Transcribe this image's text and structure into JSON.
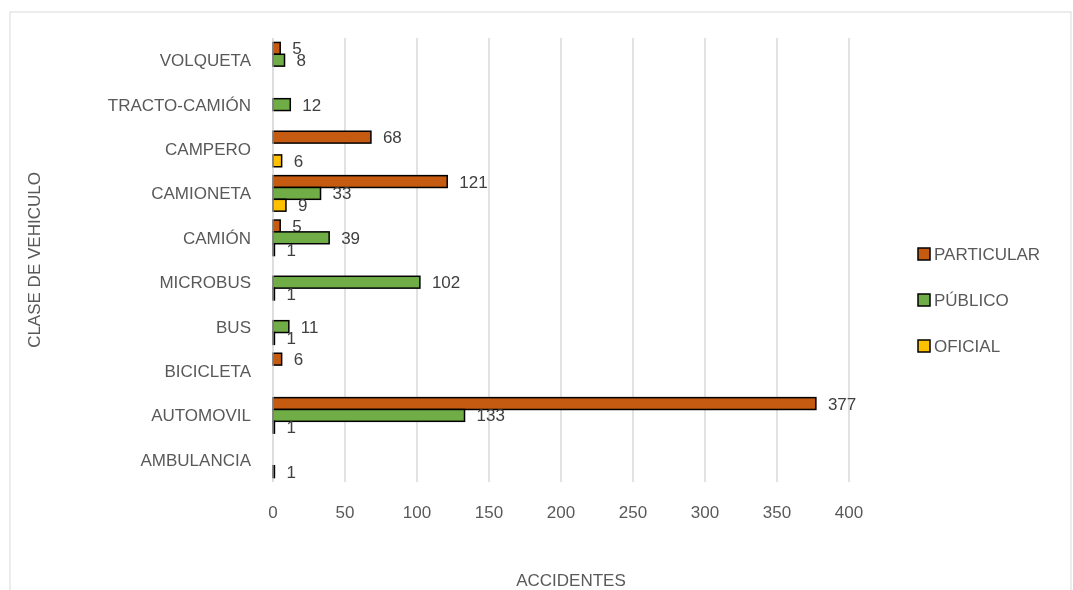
{
  "chart_data": {
    "type": "bar",
    "orientation": "horizontal",
    "xlabel": "ACCIDENTES",
    "ylabel": "CLASE DE VEHICULO",
    "categories": [
      "VOLQUETA",
      "TRACTO-CAMIÓN",
      "CAMPERO",
      "CAMIONETA",
      "CAMIÓN",
      "MICROBUS",
      "BUS",
      "BICICLETA",
      "AUTOMOVIL",
      "AMBULANCIA"
    ],
    "series": [
      {
        "name": "PARTICULAR",
        "color": "#c55a11",
        "values": [
          5,
          null,
          68,
          121,
          5,
          null,
          null,
          6,
          377,
          null
        ]
      },
      {
        "name": "PÚBLICO",
        "color": "#70ad47",
        "values": [
          8,
          12,
          null,
          33,
          39,
          102,
          11,
          null,
          133,
          null
        ]
      },
      {
        "name": "OFICIAL",
        "color": "#ffc000",
        "values": [
          null,
          null,
          6,
          9,
          1,
          1,
          1,
          null,
          1,
          1
        ]
      }
    ],
    "xlim": [
      0,
      400
    ],
    "xticks": [
      0,
      50,
      100,
      150,
      200,
      250,
      300,
      350,
      400
    ],
    "grid": "x",
    "legend": "right",
    "data_labels": true
  }
}
